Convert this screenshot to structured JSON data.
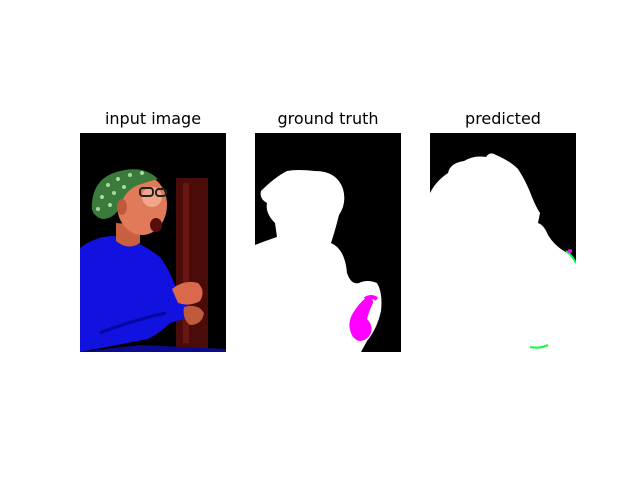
{
  "figure": {
    "panels": [
      {
        "title": "input image"
      },
      {
        "title": "ground truth"
      },
      {
        "title": "predicted"
      }
    ]
  },
  "colors": {
    "background": "#000000",
    "foreground_mask": "#ffffff",
    "second_class_mask": "#ff00ff",
    "edge_artifact": "#00ff44",
    "skin": "#d9694a",
    "sweater": "#1111e0",
    "scarf": "#3a7a3a",
    "door": "#4a0c08"
  }
}
